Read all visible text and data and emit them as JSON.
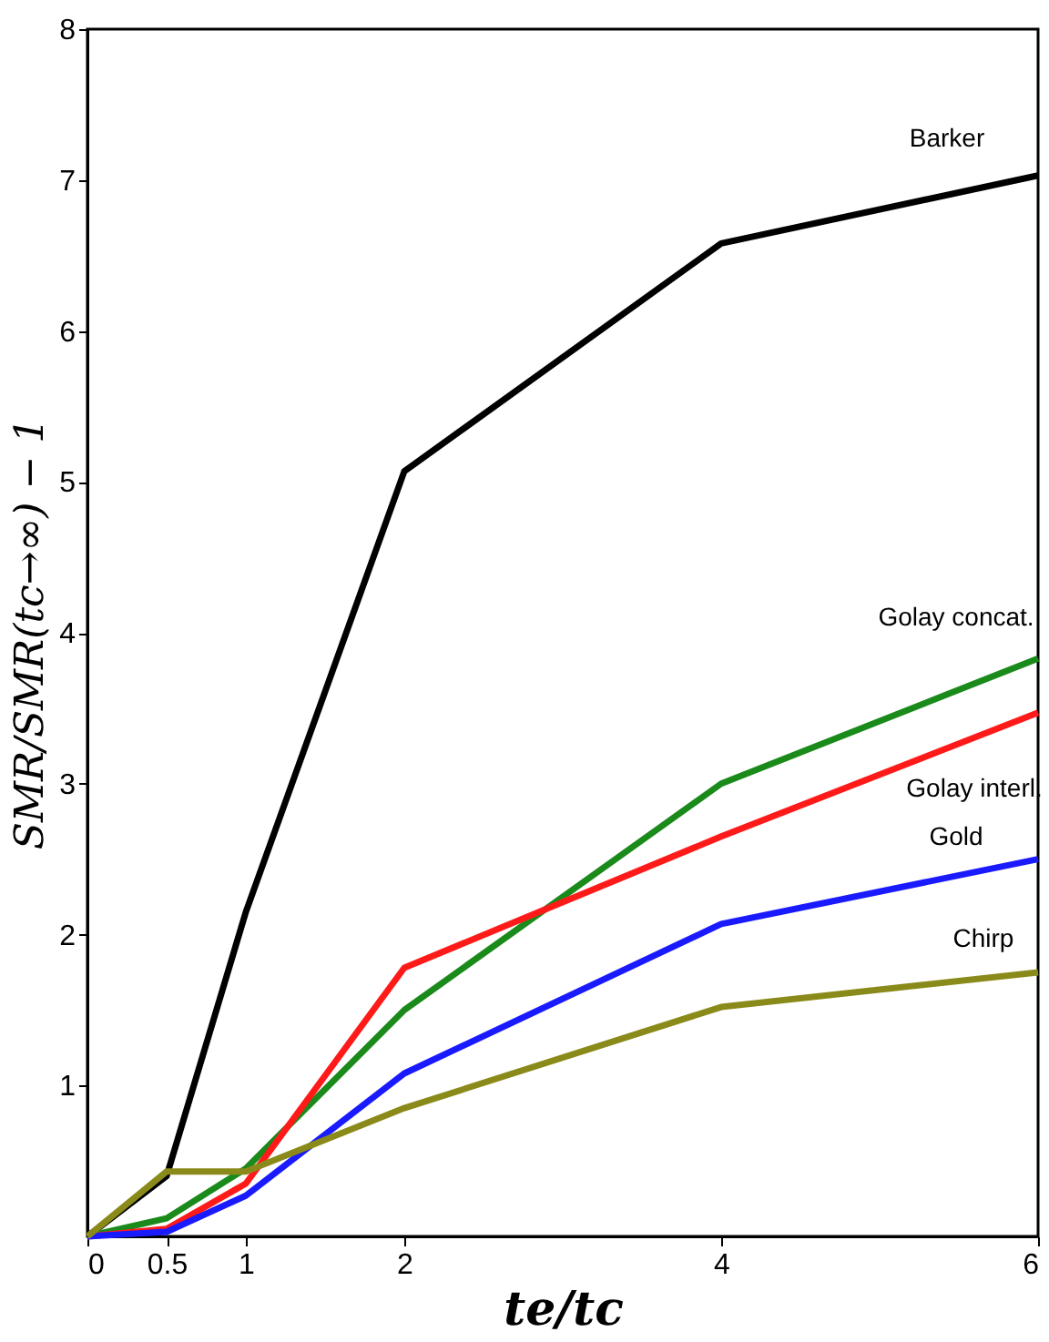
{
  "chart_data": {
    "type": "line",
    "x": [
      0,
      0.5,
      1,
      2,
      4,
      6
    ],
    "xlabel": "te/tc",
    "ylabel": "SMR/SMR(tc→∞) − 1",
    "xlim": [
      0,
      6
    ],
    "xticks": [
      0,
      0.5,
      1,
      2,
      4,
      6
    ],
    "ylim": [
      0,
      8
    ],
    "yticks": [
      1,
      2,
      3,
      4,
      5,
      6,
      7,
      8
    ],
    "grid": false,
    "line_style": "solid",
    "series": [
      {
        "name": "Barker",
        "color": "#000000",
        "values": [
          0,
          0.4,
          2.15,
          5.07,
          6.58,
          7.03
        ]
      },
      {
        "name": "Golay concat.",
        "color": "#1a8a1a",
        "values": [
          0,
          0.12,
          0.45,
          1.5,
          3.0,
          3.83
        ]
      },
      {
        "name": "Golay interl.",
        "color": "#ff1a1a",
        "values": [
          0,
          0.05,
          0.35,
          1.78,
          2.65,
          3.47
        ]
      },
      {
        "name": "Gold",
        "color": "#1a1aff",
        "values": [
          0,
          0.03,
          0.27,
          1.08,
          2.07,
          2.5
        ]
      },
      {
        "name": "Chirp",
        "color": "#8a8a1a",
        "values": [
          0,
          0.43,
          0.43,
          0.85,
          1.52,
          1.75
        ]
      }
    ]
  }
}
